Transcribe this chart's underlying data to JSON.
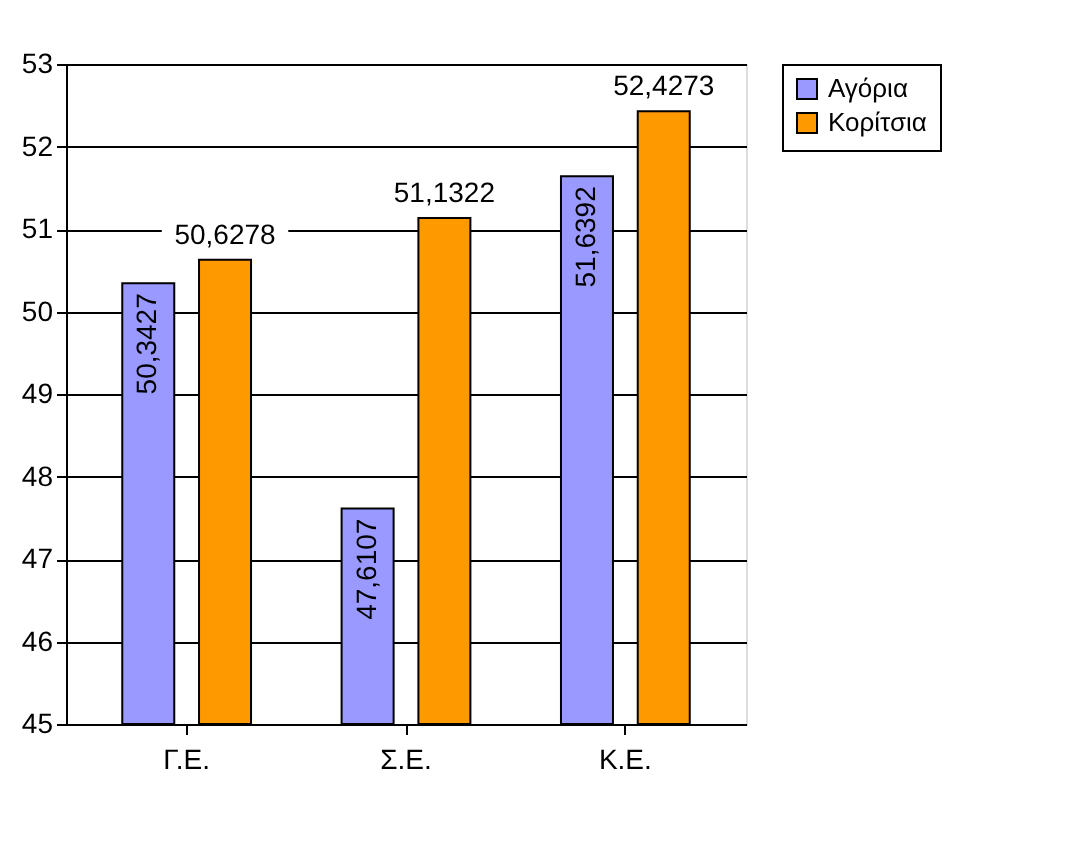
{
  "chart_data": {
    "type": "bar",
    "categories": [
      "Γ.Ε.",
      "Σ.Ε.",
      "Κ.Ε."
    ],
    "series": [
      {
        "name": "Αγόρια",
        "color": "#9999ff",
        "values": [
          50.3427,
          47.6107,
          51.6392
        ],
        "value_labels": [
          "50,3427",
          "47,6107",
          "51,6392"
        ]
      },
      {
        "name": "Κορίτσια",
        "color": "#ff9900",
        "values": [
          50.6278,
          51.1322,
          52.4273
        ],
        "value_labels": [
          "50,6278",
          "51,1322",
          "52,4273"
        ]
      }
    ],
    "ylim": [
      45,
      53
    ],
    "yticks": [
      45,
      46,
      47,
      48,
      49,
      50,
      51,
      52,
      53
    ],
    "grid": "y",
    "legend": "right"
  }
}
